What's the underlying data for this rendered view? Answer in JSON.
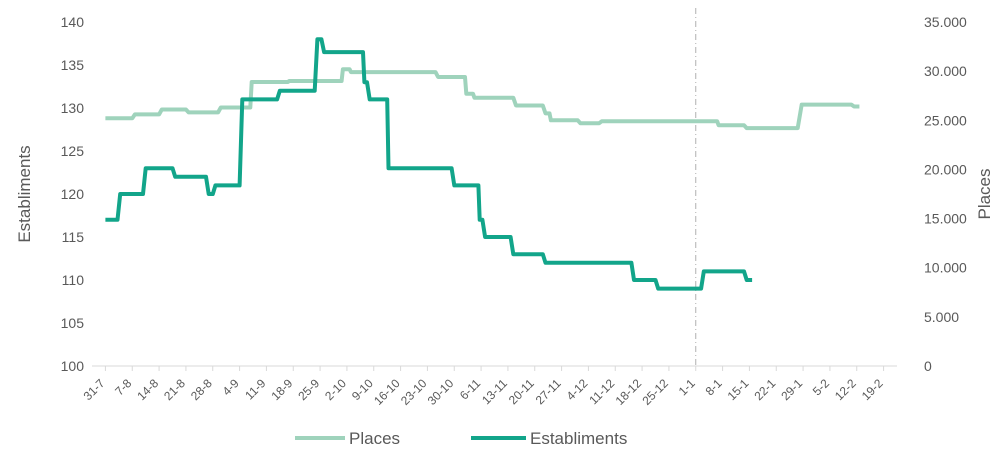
{
  "chart_data": {
    "type": "line",
    "title": "",
    "xlabel": "",
    "ylabel": "Establiments",
    "y2label": "Places",
    "ylim": [
      100,
      140
    ],
    "y2lim": [
      0,
      35000
    ],
    "yticks": [
      "100",
      "105",
      "110",
      "115",
      "120",
      "125",
      "130",
      "135",
      "140"
    ],
    "y2ticks": [
      "0",
      "5.000",
      "10.000",
      "15.000",
      "20.000",
      "25.000",
      "30.000",
      "35.000"
    ],
    "categories": [
      "31-7",
      "7-8",
      "14-8",
      "21-8",
      "28-8",
      "4-9",
      "11-9",
      "18-9",
      "25-9",
      "2-10",
      "9-10",
      "16-10",
      "23-10",
      "30-10",
      "6-11",
      "13-11",
      "20-11",
      "27-11",
      "4-12",
      "11-12",
      "18-12",
      "25-12",
      "1-1",
      "8-1",
      "15-1",
      "22-1",
      "29-1",
      "5-2",
      "12-2",
      "19-2"
    ],
    "reference_line_at": "1-1",
    "grid": false,
    "legend": "bottom",
    "colors": {
      "places": "#9fd3bc",
      "establiments": "#12a58a",
      "reference_line": "#b0b0b0",
      "axis": "#d9d9d9",
      "text": "#595959"
    },
    "series": [
      {
        "name": "Places",
        "axis": "right",
        "points": [
          [
            0,
            25200
          ],
          [
            1,
            25200
          ],
          [
            1.1,
            25600
          ],
          [
            2,
            25600
          ],
          [
            2.1,
            26100
          ],
          [
            3,
            26100
          ],
          [
            3.1,
            25800
          ],
          [
            4.2,
            25800
          ],
          [
            4.3,
            26300
          ],
          [
            5.4,
            26300
          ],
          [
            5.45,
            28900
          ],
          [
            6.8,
            28900
          ],
          [
            6.85,
            29000
          ],
          [
            8.8,
            29000
          ],
          [
            8.85,
            30200
          ],
          [
            9.1,
            30200
          ],
          [
            9.15,
            29900
          ],
          [
            12.3,
            29900
          ],
          [
            12.4,
            29400
          ],
          [
            13.4,
            29400
          ],
          [
            13.45,
            27700
          ],
          [
            13.7,
            27700
          ],
          [
            13.75,
            27300
          ],
          [
            15.2,
            27300
          ],
          [
            15.3,
            26500
          ],
          [
            16.3,
            26500
          ],
          [
            16.4,
            25700
          ],
          [
            16.55,
            25700
          ],
          [
            16.6,
            25000
          ],
          [
            17.6,
            25000
          ],
          [
            17.7,
            24700
          ],
          [
            18.4,
            24700
          ],
          [
            18.5,
            24900
          ],
          [
            22.8,
            24900
          ],
          [
            22.85,
            24500
          ],
          [
            23.8,
            24500
          ],
          [
            23.9,
            24200
          ],
          [
            25.8,
            24200
          ],
          [
            25.95,
            26600
          ],
          [
            27.8,
            26600
          ],
          [
            27.9,
            26400
          ],
          [
            28.1,
            26400
          ]
        ]
      },
      {
        "name": "Establiments",
        "axis": "left",
        "points": [
          [
            0,
            117
          ],
          [
            0.45,
            117
          ],
          [
            0.55,
            120
          ],
          [
            1.4,
            120
          ],
          [
            1.5,
            123
          ],
          [
            2.5,
            123
          ],
          [
            2.6,
            122
          ],
          [
            3.75,
            122
          ],
          [
            3.85,
            120
          ],
          [
            4.0,
            120
          ],
          [
            4.1,
            121
          ],
          [
            5.0,
            121
          ],
          [
            5.1,
            131
          ],
          [
            6.4,
            131
          ],
          [
            6.5,
            132
          ],
          [
            7.8,
            132
          ],
          [
            7.9,
            138
          ],
          [
            8.05,
            138
          ],
          [
            8.15,
            136.5
          ],
          [
            9.6,
            136.5
          ],
          [
            9.65,
            133
          ],
          [
            9.75,
            133
          ],
          [
            9.85,
            131
          ],
          [
            10.5,
            131
          ],
          [
            10.55,
            123
          ],
          [
            12.9,
            123
          ],
          [
            13.0,
            121
          ],
          [
            13.9,
            121
          ],
          [
            13.95,
            117
          ],
          [
            14.05,
            117
          ],
          [
            14.15,
            115
          ],
          [
            15.1,
            115
          ],
          [
            15.2,
            113
          ],
          [
            16.3,
            113
          ],
          [
            16.4,
            112
          ],
          [
            19.6,
            112
          ],
          [
            19.7,
            110
          ],
          [
            20.5,
            110
          ],
          [
            20.6,
            109
          ],
          [
            22.2,
            109
          ],
          [
            22.3,
            111
          ],
          [
            23.8,
            111
          ],
          [
            23.9,
            110
          ],
          [
            24.1,
            110
          ]
        ]
      }
    ]
  }
}
